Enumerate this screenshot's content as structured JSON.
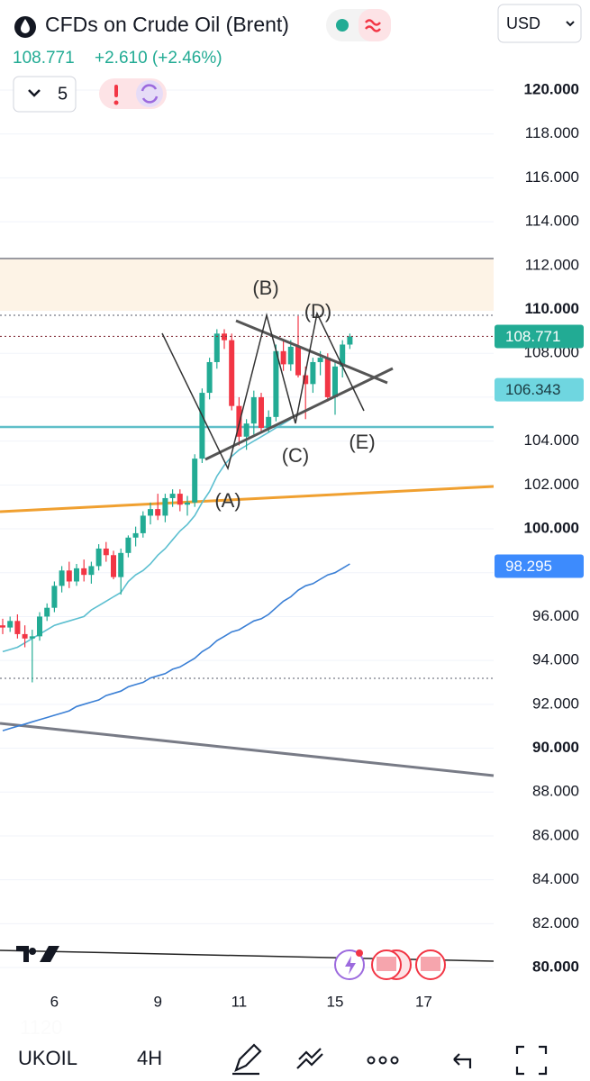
{
  "header": {
    "symbol_name": "CFDs on Crude Oil (Brent)",
    "price": "108.771",
    "change": "+2.610 (+2.46%)",
    "interval_count": "5",
    "currency": "USD"
  },
  "chart_data": {
    "type": "candlestick",
    "categories": [
      null,
      null,
      null,
      null,
      null,
      null,
      null,
      "6",
      null,
      null,
      null,
      null,
      null,
      null,
      null,
      null,
      null,
      null,
      null,
      null,
      null,
      "9",
      null,
      null,
      null,
      null,
      null,
      null,
      null,
      null,
      null,
      null,
      "11",
      null,
      null,
      null,
      null,
      null,
      null,
      null,
      null,
      null,
      null,
      null,
      null,
      "15",
      null,
      null,
      null,
      null,
      null,
      null,
      null,
      null,
      null,
      null,
      null,
      "17"
    ],
    "open": [
      95.6,
      95.5,
      95.8,
      95.2,
      95.0,
      95.1,
      96.0,
      96.4,
      97.4,
      98.1,
      97.6,
      98.2,
      97.9,
      98.3,
      99.1,
      98.8,
      97.8,
      98.9,
      99.6,
      99.8,
      100.6,
      100.9,
      100.6,
      101.4,
      101.6,
      101.1,
      101.2,
      103.2,
      106.2,
      107.6,
      108.9,
      108.6,
      105.6,
      104.2,
      104.8,
      106.0,
      104.6,
      105.1,
      108.1,
      107.5,
      108.3,
      107.0,
      106.6,
      107.6,
      107.8,
      106.0,
      107.4,
      108.4,
      null,
      null,
      null,
      null,
      null,
      null,
      null,
      null,
      null,
      null
    ],
    "high": [
      95.9,
      96.0,
      96.1,
      95.6,
      95.4,
      96.2,
      96.6,
      97.6,
      98.3,
      98.5,
      98.4,
      98.6,
      98.5,
      99.3,
      99.4,
      99.0,
      99.1,
      99.7,
      100.1,
      100.8,
      101.2,
      101.6,
      101.6,
      101.8,
      101.8,
      101.5,
      103.4,
      106.4,
      107.8,
      109.1,
      109.1,
      108.9,
      106.0,
      105.0,
      106.3,
      106.2,
      105.4,
      108.4,
      108.6,
      108.6,
      109.7,
      107.4,
      107.8,
      108.1,
      108.0,
      107.6,
      108.6,
      108.9,
      null,
      null,
      null,
      null,
      null,
      null,
      null,
      null,
      null,
      null
    ],
    "low": [
      95.2,
      95.3,
      95.0,
      94.6,
      93.0,
      94.9,
      95.8,
      96.2,
      97.1,
      97.3,
      97.4,
      97.6,
      97.5,
      98.1,
      98.5,
      97.7,
      97.0,
      98.7,
      99.2,
      99.6,
      100.2,
      100.4,
      100.3,
      101.0,
      100.8,
      100.6,
      101.0,
      103.0,
      105.9,
      107.3,
      108.2,
      105.4,
      103.8,
      103.6,
      104.3,
      104.4,
      104.4,
      104.9,
      107.2,
      107.2,
      106.9,
      105.0,
      106.2,
      107.0,
      105.8,
      105.2,
      106.9,
      108.2,
      null,
      null,
      null,
      null,
      null,
      null,
      null,
      null,
      null,
      null
    ],
    "close": [
      95.5,
      95.8,
      95.2,
      95.0,
      95.1,
      96.0,
      96.4,
      97.4,
      98.1,
      97.6,
      98.2,
      97.9,
      98.3,
      99.1,
      98.8,
      97.8,
      98.9,
      99.6,
      99.8,
      100.6,
      100.9,
      100.6,
      101.4,
      101.6,
      101.1,
      101.2,
      103.2,
      106.2,
      107.6,
      108.9,
      108.6,
      105.6,
      104.2,
      104.8,
      106.0,
      104.6,
      105.1,
      108.1,
      107.5,
      108.3,
      107.0,
      106.6,
      107.6,
      107.8,
      106.0,
      107.4,
      108.4,
      108.771,
      null,
      null,
      null,
      null,
      null,
      null,
      null,
      null,
      null,
      null
    ],
    "up_color": "#22ab94",
    "down_color": "#f23645",
    "series": [
      {
        "color": "#5cbfd0",
        "values": [
          94.4,
          94.5,
          94.6,
          94.8,
          95.0,
          95.2,
          95.4,
          95.6,
          95.7,
          95.8,
          95.9,
          96.0,
          96.3,
          96.5,
          96.7,
          96.9,
          97.1,
          97.6,
          97.9,
          98.1,
          98.4,
          98.8,
          99.1,
          99.5,
          99.9,
          100.2,
          100.6,
          101.2,
          101.7,
          102.4,
          102.9,
          103.3,
          103.6,
          103.8,
          104.0,
          104.2,
          104.4,
          104.6,
          104.8,
          105.0,
          null,
          null,
          null,
          null,
          null,
          null,
          null,
          null,
          null,
          null,
          null,
          null,
          null,
          null,
          null,
          null,
          null,
          null
        ]
      },
      {
        "color": "#3a7fd5",
        "values": [
          90.8,
          90.9,
          91.0,
          91.1,
          91.2,
          91.3,
          91.4,
          91.5,
          91.6,
          91.7,
          91.9,
          92.0,
          92.1,
          92.2,
          92.4,
          92.5,
          92.6,
          92.8,
          92.9,
          93.0,
          93.2,
          93.3,
          93.4,
          93.6,
          93.7,
          93.9,
          94.1,
          94.4,
          94.6,
          94.9,
          95.1,
          95.3,
          95.4,
          95.6,
          95.8,
          95.9,
          96.1,
          96.4,
          96.7,
          96.9,
          97.2,
          97.4,
          97.5,
          97.7,
          97.9,
          98.0,
          98.2,
          98.4,
          null,
          null,
          null,
          null,
          null,
          null,
          null,
          null,
          null,
          null
        ]
      }
    ],
    "ylim": [
      79,
      121.5
    ],
    "yticks": [
      {
        "value": 80,
        "label": "80.000"
      },
      {
        "value": 82,
        "label": "82.000"
      },
      {
        "value": 84,
        "label": "84.000"
      },
      {
        "value": 86,
        "label": "86.000"
      },
      {
        "value": 88,
        "label": "88.000"
      },
      {
        "value": 90,
        "label": "90.000"
      },
      {
        "value": 92,
        "label": "92.000"
      },
      {
        "value": 94,
        "label": "94.000"
      },
      {
        "value": 96,
        "label": "96.000"
      },
      {
        "value": 98,
        "label": "98.000"
      },
      {
        "value": 100,
        "label": "100.000"
      },
      {
        "value": 102,
        "label": "102.000"
      },
      {
        "value": 104,
        "label": "104.000"
      },
      {
        "value": 106,
        "label": "106.000"
      },
      {
        "value": 108,
        "label": "108.000"
      },
      {
        "value": 110,
        "label": "110.000"
      },
      {
        "value": 112,
        "label": "112.000"
      },
      {
        "value": 114,
        "label": "114.000"
      },
      {
        "value": 116,
        "label": "116.000"
      },
      {
        "value": 118,
        "label": "118.000"
      },
      {
        "value": 120,
        "label": "120.000"
      }
    ],
    "grid": true,
    "price_labels": [
      {
        "value": 108.771,
        "color": "#22ab94",
        "text_color": "#ffffff"
      },
      {
        "value": 106.343,
        "color": "#6fd6e0",
        "text_color": "#1a3a40"
      },
      {
        "value": 98.295,
        "color": "#3d8bfd",
        "text_color": "#ffffff"
      }
    ],
    "wave_labels": [
      "(A)",
      "(B)",
      "(C)",
      "(D)",
      "(E)"
    ],
    "watermark": "1120"
  },
  "toolbar": {
    "symbol": "UKOIL",
    "interval": "4H"
  }
}
